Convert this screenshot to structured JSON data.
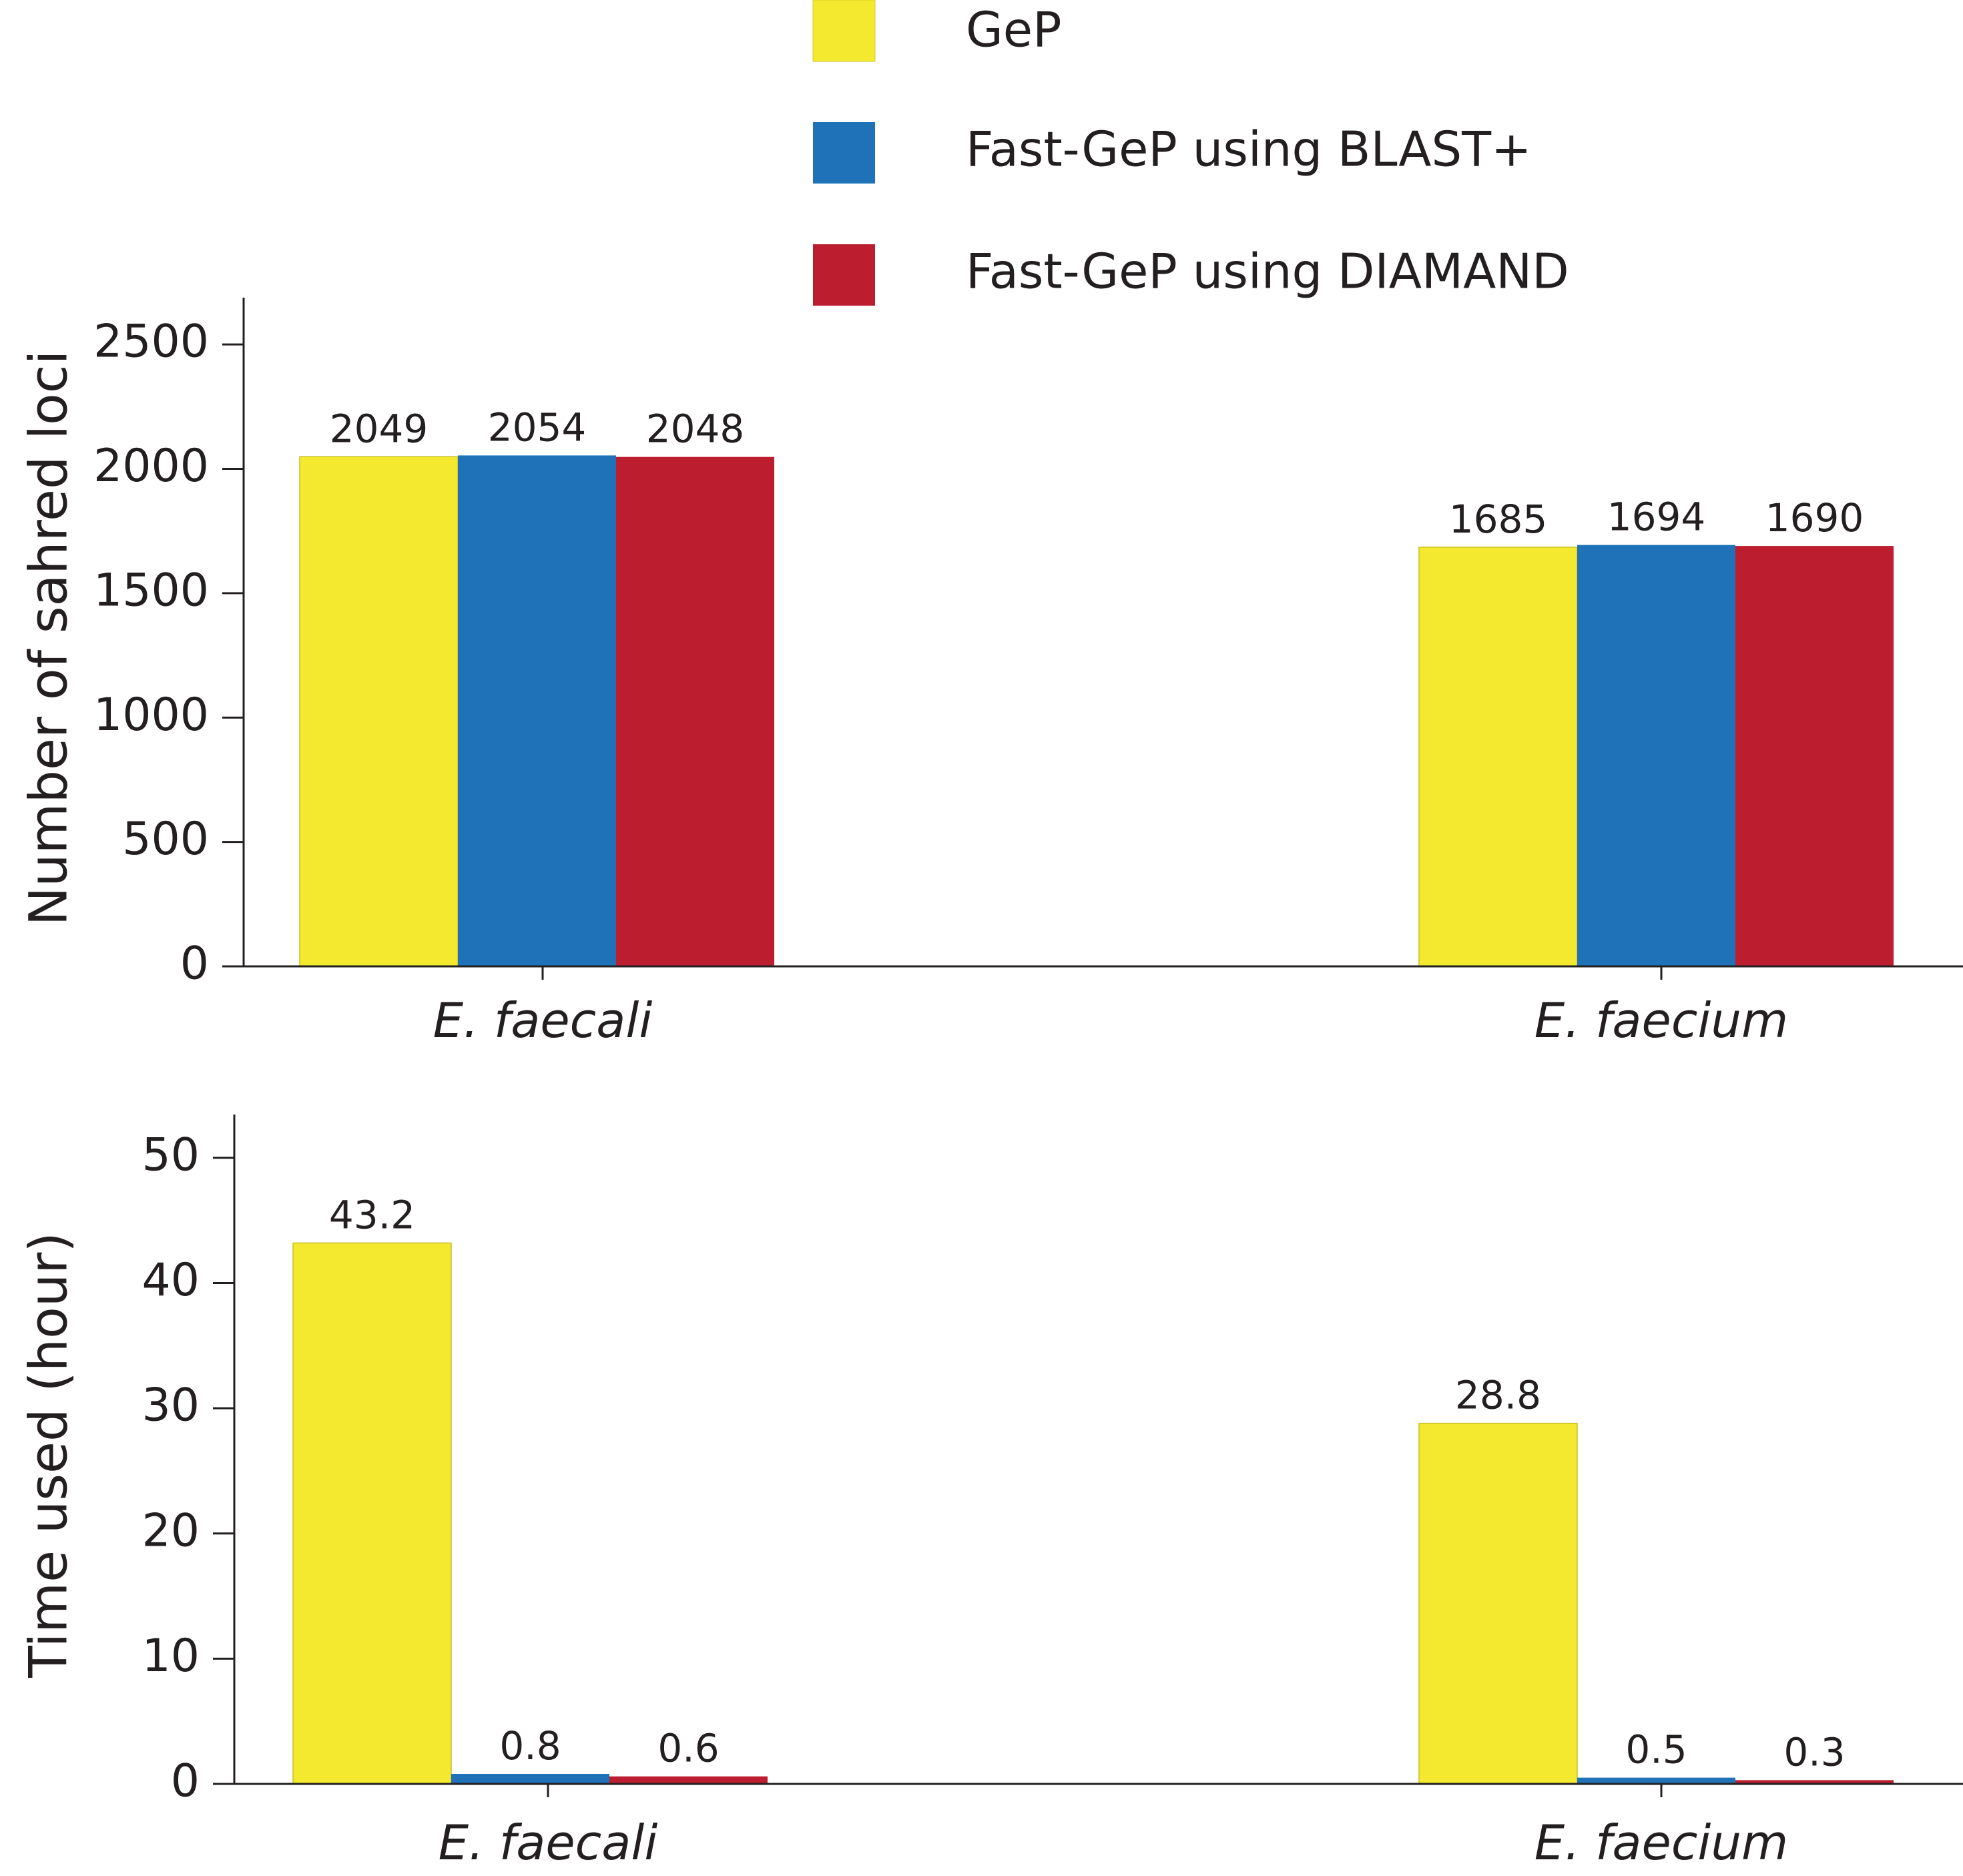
{
  "legend": {
    "entries": [
      {
        "label": "GeP",
        "color": "#f4e92f"
      },
      {
        "label": "Fast-GeP using BLAST+",
        "color": "#1f72b8"
      },
      {
        "label": "Fast-GeP using DIAMAND",
        "color": "#bc1e2f"
      }
    ],
    "placement": "top-center"
  },
  "chart_data": [
    {
      "type": "bar",
      "categories": [
        "E. faecali",
        "E. faecium"
      ],
      "series": [
        {
          "name": "GeP",
          "values": [
            2049,
            1685
          ],
          "labels": [
            "2049",
            "1685"
          ]
        },
        {
          "name": "Fast-GeP using BLAST+",
          "values": [
            2054,
            1694
          ],
          "labels": [
            "2054",
            "1694"
          ]
        },
        {
          "name": "Fast-GeP using DIAMAND",
          "values": [
            2048,
            1690
          ],
          "labels": [
            "2048",
            "1690"
          ]
        }
      ],
      "title": "",
      "xlabel": "",
      "ylabel": "Number of sahred loci",
      "ylim": [
        0,
        2640
      ],
      "yticks": [
        0,
        500,
        1000,
        1500,
        2000,
        2500
      ],
      "ytick_labels": [
        "0",
        "500",
        "1000",
        "1500",
        "2000",
        "2500"
      ],
      "grid": false
    },
    {
      "type": "bar",
      "categories": [
        "E. faecali",
        "E. faecium"
      ],
      "series": [
        {
          "name": "GeP",
          "values": [
            43.2,
            28.8
          ],
          "labels": [
            "43.2",
            "28.8"
          ]
        },
        {
          "name": "Fast-GeP using BLAST+",
          "values": [
            0.8,
            0.5
          ],
          "labels": [
            "0.8",
            "0.5"
          ]
        },
        {
          "name": "Fast-GeP using DIAMAND",
          "values": [
            0.6,
            0.3
          ],
          "labels": [
            "0.6",
            "0.3"
          ]
        }
      ],
      "title": "",
      "xlabel": "",
      "ylabel": "Time used (hour)",
      "ylim": [
        0,
        52.5
      ],
      "yticks": [
        0,
        10,
        20,
        30,
        40,
        50
      ],
      "ytick_labels": [
        "0",
        "10",
        "20",
        "30",
        "40",
        "50"
      ],
      "grid": false
    }
  ]
}
